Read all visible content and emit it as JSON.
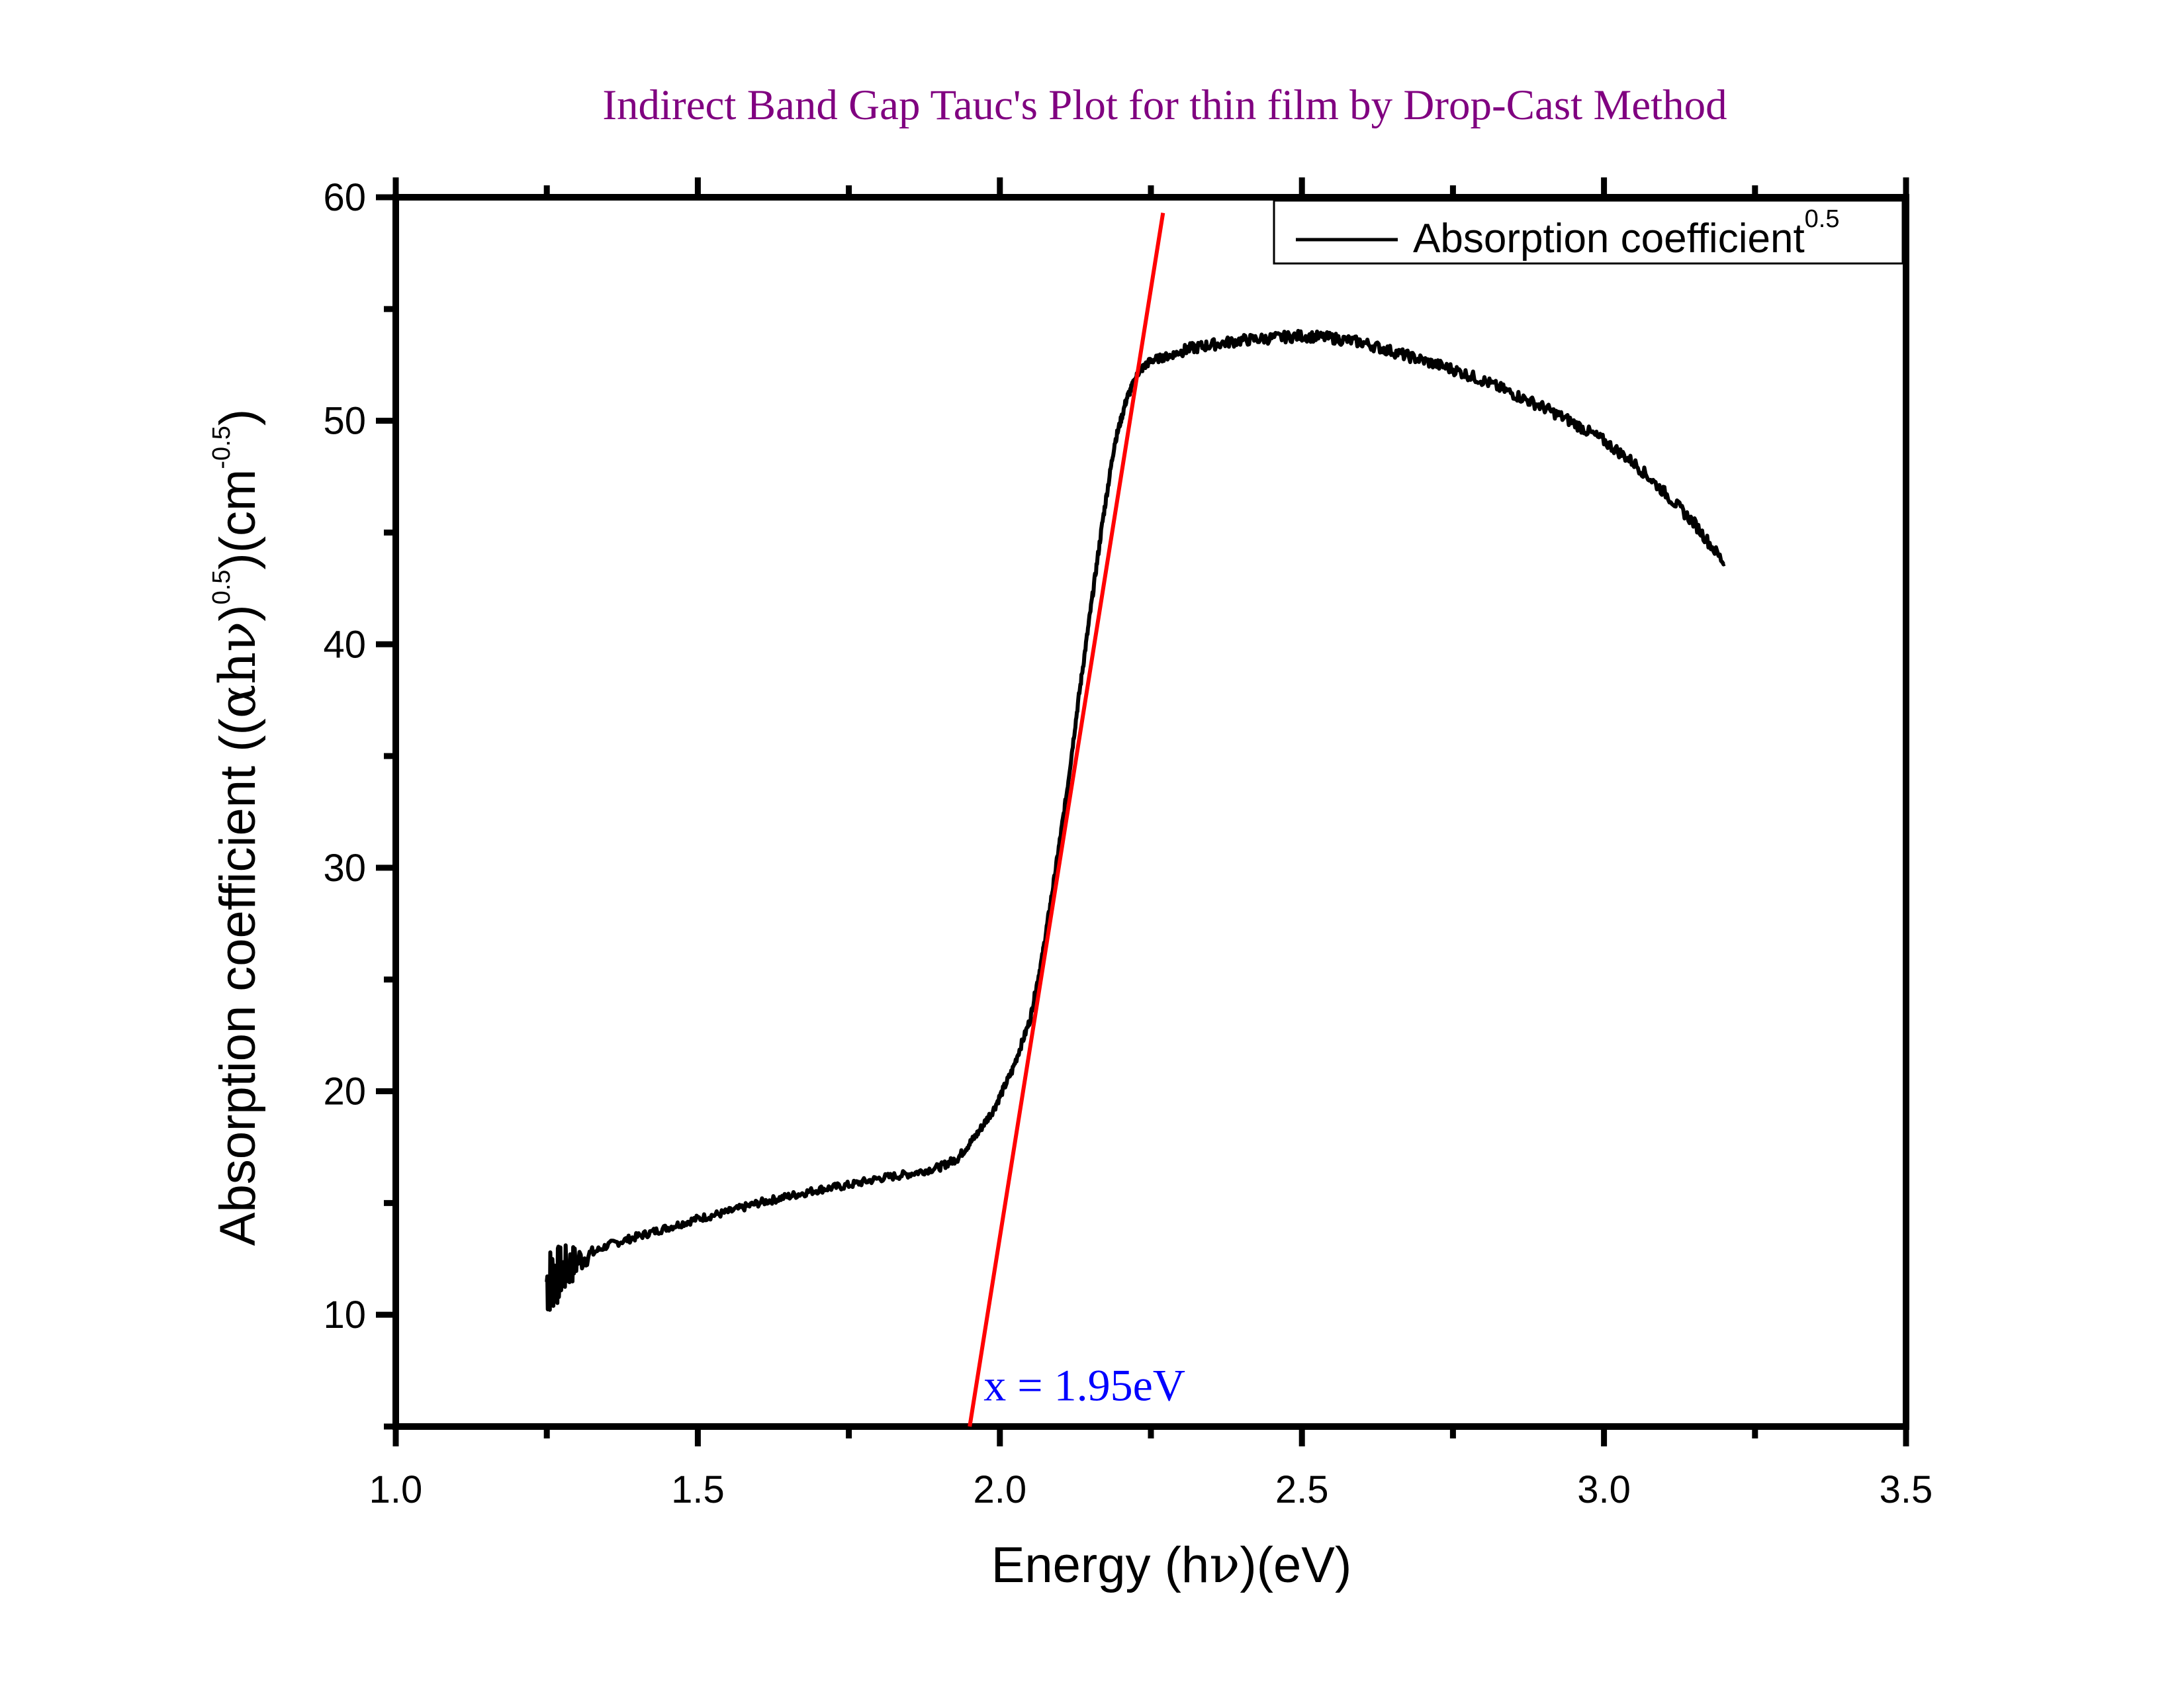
{
  "chart_data": {
    "type": "line",
    "title": "Indirect Band Gap Tauc's Plot for thin film by Drop-Cast Method",
    "xlabel": {
      "before": "Energy (h",
      "greek": "ν",
      "after": ")(eV)"
    },
    "ylabel": {
      "part1": "Absorption coefficient ((",
      "greek": "αhν",
      "part2": ")",
      "sup1": "0.5",
      "part3": ")(cm",
      "sup2": "-0.5",
      "part4": ")"
    },
    "xlim": [
      1.0,
      3.5
    ],
    "ylim": [
      5,
      60
    ],
    "xticks": [
      1.0,
      1.5,
      2.0,
      2.5,
      3.0,
      3.5
    ],
    "xtick_labels": [
      "1.0",
      "1.5",
      "2.0",
      "2.5",
      "3.0",
      "3.5"
    ],
    "yticks": [
      10,
      20,
      30,
      40,
      50,
      60
    ],
    "ytick_labels": [
      "10",
      "20",
      "30",
      "40",
      "50",
      "60"
    ],
    "grid": false,
    "legend": {
      "position": "top-right",
      "label": "Absorption coefficient",
      "sup": "0.5"
    },
    "series": [
      {
        "name": "Absorption coefficient^0.5",
        "color": "#000000",
        "x": [
          1.25,
          1.27,
          1.3,
          1.35,
          1.4,
          1.45,
          1.5,
          1.55,
          1.6,
          1.65,
          1.7,
          1.75,
          1.8,
          1.85,
          1.9,
          1.93,
          1.96,
          1.99,
          2.02,
          2.05,
          2.07,
          2.09,
          2.11,
          2.13,
          2.15,
          2.17,
          2.19,
          2.21,
          2.23,
          2.25,
          2.28,
          2.31,
          2.35,
          2.4,
          2.45,
          2.5,
          2.55,
          2.6,
          2.65,
          2.7,
          2.75,
          2.8,
          2.85,
          2.9,
          2.95,
          3.0,
          3.05,
          3.1,
          3.15,
          3.2
        ],
        "y": [
          11.5,
          11.8,
          12.4,
          13.1,
          13.5,
          13.9,
          14.3,
          14.6,
          15.0,
          15.3,
          15.6,
          15.8,
          16.1,
          16.3,
          16.6,
          17.0,
          18.0,
          19.2,
          20.9,
          23.2,
          26.0,
          29.5,
          33.2,
          37.5,
          41.5,
          45.5,
          49.0,
          51.0,
          52.2,
          52.7,
          52.9,
          53.2,
          53.4,
          53.6,
          53.7,
          53.8,
          53.7,
          53.5,
          53.1,
          52.7,
          52.3,
          51.8,
          51.2,
          50.6,
          49.9,
          49.1,
          48.1,
          46.8,
          45.4,
          43.6
        ]
      },
      {
        "name": "linear fit",
        "color": "#ff0000",
        "x": [
          1.95,
          2.27
        ],
        "y": [
          5.0,
          59.3
        ]
      }
    ],
    "annotations": [
      {
        "text": "x = 1.95eV",
        "x": 1.96,
        "y": 7.2,
        "color": "#0000ff"
      }
    ],
    "colors": {
      "title": "#800080",
      "fit_line": "#ff0000",
      "annotation": "#0000ff",
      "curve": "#000000"
    }
  }
}
